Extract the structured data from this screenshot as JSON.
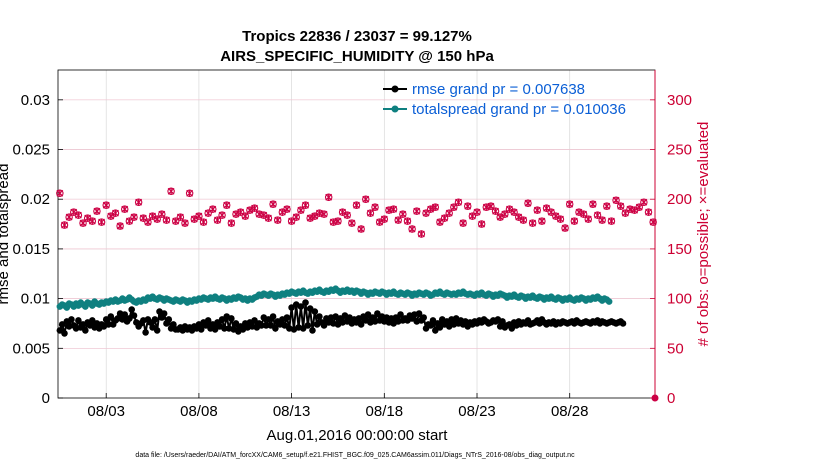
{
  "chart_data": {
    "type": "line",
    "title": "Tropics 22836 / 23037 = 99.127%",
    "subtitle": "AIRS_SPECIFIC_HUMIDITY @ 150 hPa",
    "xlabel": "Aug.01,2016 00:00:00 start",
    "ylabel": "rmse and totalspread",
    "y2label": "# of obs: o=possible; ×=evaluated",
    "footnote": "data file: /Users/raeder/DAI/ATM_forcXX/CAM6_setup/f.e21.FHIST_BGC.f09_025.CAM6assim.011/Diags_NTrS_2016-08/obs_diag_output.nc",
    "x_range": [
      0.4,
      32.6
    ],
    "x_tick_values": [
      3,
      8,
      13,
      18,
      23,
      28
    ],
    "x_tick_labels": [
      "08/03",
      "08/08",
      "08/13",
      "08/18",
      "08/23",
      "08/28"
    ],
    "ylim": [
      0,
      0.033
    ],
    "y_ticks": [
      0,
      0.005,
      0.01,
      0.015,
      0.02,
      0.025,
      0.03
    ],
    "y_tick_labels": [
      "0",
      "0.005",
      "0.01",
      "0.015",
      "0.02",
      "0.025",
      "0.03"
    ],
    "y2lim": [
      0,
      330
    ],
    "y2_ticks": [
      0,
      50,
      100,
      150,
      200,
      250,
      300
    ],
    "y2_tick_labels": [
      "0",
      "50",
      "100",
      "150",
      "200",
      "250",
      "300"
    ],
    "grid": true,
    "legend_position": "top-right",
    "colors": {
      "rmse": "#000000",
      "totalspread": "#0f8080",
      "obs": "#cc0044",
      "legend_text": "#0b5fd6",
      "right_axis": "#cc0033"
    },
    "series": [
      {
        "name": "rmse grand pr = 0.007638",
        "axis": "left",
        "start": 0.5,
        "step": 0.125,
        "values": [
          0.0068,
          0.0074,
          0.0065,
          0.0077,
          0.0072,
          0.0079,
          0.0073,
          0.007,
          0.0078,
          0.0071,
          0.0074,
          0.0068,
          0.0076,
          0.0073,
          0.0078,
          0.0071,
          0.0075,
          0.007,
          0.0074,
          0.0072,
          0.0079,
          0.0074,
          0.0082,
          0.0074,
          0.0078,
          0.008,
          0.0085,
          0.0079,
          0.0084,
          0.0077,
          0.008,
          0.0089,
          0.0083,
          0.0076,
          0.0072,
          0.0075,
          0.0078,
          0.0066,
          0.0079,
          0.0076,
          0.0071,
          0.0079,
          0.0068,
          0.0087,
          0.0081,
          0.0085,
          0.0075,
          0.0079,
          0.007,
          0.0074,
          0.0069,
          0.0069,
          0.0071,
          0.0068,
          0.0072,
          0.0069,
          0.0071,
          0.0068,
          0.0072,
          0.007,
          0.0074,
          0.0069,
          0.0076,
          0.0073,
          0.0078,
          0.007,
          0.0074,
          0.0069,
          0.0076,
          0.0072,
          0.0079,
          0.007,
          0.0082,
          0.007,
          0.008,
          0.0069,
          0.0075,
          0.0067,
          0.0072,
          0.0069,
          0.0075,
          0.0071,
          0.0076,
          0.0072,
          0.0078,
          0.0071,
          0.0075,
          0.0073,
          0.0081,
          0.0073,
          0.0079,
          0.0073,
          0.0082,
          0.007,
          0.0077,
          0.0074,
          0.0079,
          0.0073,
          0.0081,
          0.007,
          0.0091,
          0.0069,
          0.0094,
          0.0071,
          0.0092,
          0.007,
          0.0096,
          0.0073,
          0.009,
          0.0068,
          0.0087,
          0.0074,
          0.0082,
          0.0076,
          0.0073,
          0.008,
          0.0076,
          0.0081,
          0.0075,
          0.0082,
          0.0074,
          0.008,
          0.0076,
          0.0083,
          0.0077,
          0.0081,
          0.0075,
          0.0079,
          0.0076,
          0.008,
          0.0074,
          0.0082,
          0.0078,
          0.0084,
          0.0076,
          0.0081,
          0.0077,
          0.0085,
          0.0078,
          0.0082,
          0.0077,
          0.0081,
          0.0076,
          0.008,
          0.0075,
          0.0081,
          0.0077,
          0.0084,
          0.0078,
          0.008,
          0.0078,
          0.0083,
          0.008,
          0.0084,
          0.0077,
          0.0085,
          0.0078,
          0.0081,
          0.007,
          0.0074,
          0.0073,
          0.0078,
          0.0068,
          0.0075,
          0.0071,
          0.0079,
          0.0074,
          0.0077,
          0.0072,
          0.0079,
          0.0074,
          0.008,
          0.0075,
          0.0078,
          0.0074,
          0.0077,
          0.0072,
          0.0076,
          0.0074,
          0.0077,
          0.0075,
          0.0078,
          0.0076,
          0.0079,
          0.0077,
          0.0075,
          0.0076,
          0.0078,
          0.0077,
          0.0079,
          0.0072,
          0.0077,
          0.0071,
          0.0073,
          0.0074,
          0.007,
          0.0076,
          0.0073,
          0.0077,
          0.0074,
          0.0076,
          0.0075,
          0.0078,
          0.0074,
          0.0075,
          0.0076,
          0.0078,
          0.0075,
          0.0079,
          0.0076,
          0.0074,
          0.0076,
          0.0075,
          0.0077,
          0.0074,
          0.0076,
          0.0075,
          0.0077,
          0.0076,
          0.0075,
          0.0076,
          0.0077,
          0.0075,
          0.0078,
          0.0076,
          0.0075,
          0.0076,
          0.0077,
          0.0076,
          0.0075,
          0.0077,
          0.0076,
          0.0078,
          0.0075,
          0.0077,
          0.0076,
          0.0075,
          0.0076,
          0.0077,
          0.0076,
          0.0075,
          0.0076,
          0.0077,
          0.0075
        ]
      },
      {
        "name": "totalspread grand pr = 0.010036",
        "axis": "left",
        "start": 0.5,
        "step": 0.125,
        "values": [
          0.0092,
          0.0094,
          0.0093,
          0.0091,
          0.0095,
          0.0094,
          0.0092,
          0.0095,
          0.0093,
          0.0096,
          0.0094,
          0.0092,
          0.0096,
          0.0095,
          0.0093,
          0.0097,
          0.0095,
          0.0094,
          0.0096,
          0.0095,
          0.0097,
          0.0096,
          0.0098,
          0.0097,
          0.0099,
          0.0097,
          0.0098,
          0.01,
          0.0098,
          0.0099,
          0.0101,
          0.0099,
          0.0097,
          0.0096,
          0.0098,
          0.0097,
          0.0099,
          0.0098,
          0.0101,
          0.01,
          0.0102,
          0.01,
          0.0099,
          0.0101,
          0.01,
          0.0098,
          0.01,
          0.0099,
          0.0098,
          0.0097,
          0.0099,
          0.0098,
          0.0097,
          0.0099,
          0.0098,
          0.0096,
          0.0098,
          0.0097,
          0.0099,
          0.0098,
          0.01,
          0.0099,
          0.0101,
          0.01,
          0.0099,
          0.0101,
          0.01,
          0.0102,
          0.01,
          0.0099,
          0.0101,
          0.01,
          0.0098,
          0.01,
          0.0099,
          0.0101,
          0.01,
          0.0102,
          0.0101,
          0.0099,
          0.01,
          0.0098,
          0.01,
          0.0099,
          0.0101,
          0.0102,
          0.0104,
          0.0103,
          0.0105,
          0.0104,
          0.0103,
          0.0105,
          0.0104,
          0.0102,
          0.0104,
          0.0103,
          0.0105,
          0.0104,
          0.0106,
          0.0105,
          0.0107,
          0.0106,
          0.0105,
          0.0107,
          0.0106,
          0.0108,
          0.0106,
          0.0105,
          0.0107,
          0.0106,
          0.0108,
          0.0107,
          0.0109,
          0.0107,
          0.0106,
          0.0108,
          0.0107,
          0.0109,
          0.0108,
          0.011,
          0.0108,
          0.0106,
          0.0108,
          0.0107,
          0.0109,
          0.0107,
          0.0108,
          0.0106,
          0.0108,
          0.0107,
          0.0105,
          0.0107,
          0.0106,
          0.0104,
          0.0106,
          0.0105,
          0.0107,
          0.0106,
          0.0105,
          0.0107,
          0.0106,
          0.0104,
          0.0106,
          0.0105,
          0.0107,
          0.0105,
          0.0104,
          0.0106,
          0.0105,
          0.0104,
          0.0106,
          0.0105,
          0.0103,
          0.0105,
          0.0104,
          0.0106,
          0.0105,
          0.0104,
          0.0106,
          0.0105,
          0.0103,
          0.0104,
          0.0106,
          0.0105,
          0.0107,
          0.0105,
          0.0104,
          0.0106,
          0.0105,
          0.0104,
          0.0105,
          0.0104,
          0.0106,
          0.0105,
          0.0107,
          0.0105,
          0.0104,
          0.0105,
          0.0104,
          0.0103,
          0.0105,
          0.0104,
          0.0106,
          0.0104,
          0.0103,
          0.0105,
          0.0104,
          0.0102,
          0.0104,
          0.0103,
          0.0105,
          0.0104,
          0.0103,
          0.0101,
          0.0103,
          0.0102,
          0.0104,
          0.0102,
          0.0101,
          0.0103,
          0.0102,
          0.01,
          0.0102,
          0.0101,
          0.0103,
          0.0101,
          0.01,
          0.0102,
          0.0101,
          0.0099,
          0.0101,
          0.01,
          0.0102,
          0.01,
          0.0099,
          0.0101,
          0.01,
          0.0098,
          0.01,
          0.0099,
          0.0101,
          0.0099,
          0.0098,
          0.01,
          0.0099,
          0.0101,
          0.01,
          0.0098,
          0.01,
          0.0099,
          0.0101,
          0.01,
          0.0102,
          0.01,
          0.0098,
          0.01,
          0.0099,
          0.0097
        ]
      },
      {
        "name": "obs count",
        "axis": "right",
        "start": 0.5,
        "step": 0.25,
        "values": [
          206,
          174,
          182,
          187,
          184,
          176,
          181,
          178,
          188,
          177,
          194,
          183,
          186,
          173,
          190,
          178,
          182,
          197,
          181,
          177,
          183,
          180,
          185,
          179,
          208,
          178,
          182,
          176,
          206,
          180,
          183,
          177,
          186,
          190,
          179,
          184,
          194,
          176,
          185,
          187,
          183,
          189,
          191,
          185,
          184,
          181,
          195,
          179,
          187,
          190,
          178,
          182,
          189,
          194,
          181,
          183,
          186,
          185,
          202,
          177,
          178,
          187,
          184,
          176,
          194,
          170,
          200,
          186,
          192,
          177,
          180,
          189,
          190,
          179,
          185,
          178,
          170,
          188,
          165,
          186,
          190,
          192,
          177,
          181,
          186,
          192,
          197,
          176,
          193,
          183,
          187,
          175,
          192,
          193,
          188,
          182,
          185,
          190,
          187,
          182,
          179,
          196,
          176,
          189,
          178,
          191,
          187,
          183,
          180,
          171,
          195,
          178,
          187,
          185,
          180,
          195,
          184,
          179,
          193,
          178,
          199,
          193,
          186,
          190,
          189,
          192,
          197,
          187,
          177,
          185,
          192,
          199,
          183,
          176,
          195,
          189,
          195,
          212,
          181,
          182,
          183,
          193,
          186,
          179,
          194,
          186,
          178,
          188,
          183,
          192,
          197,
          188,
          193,
          190,
          185,
          188,
          183,
          179,
          215,
          161,
          143,
          192,
          197,
          190,
          185,
          187,
          193,
          182,
          193,
          178,
          188,
          196,
          189,
          185,
          197,
          177,
          186,
          196,
          179,
          192,
          184,
          193,
          187,
          177,
          196,
          183,
          190,
          181,
          193,
          189,
          185,
          183,
          179,
          193,
          176,
          187,
          181,
          183,
          190,
          178,
          196,
          191,
          185,
          173,
          180,
          197,
          179,
          195,
          190,
          179,
          200,
          202,
          168
        ]
      }
    ]
  }
}
